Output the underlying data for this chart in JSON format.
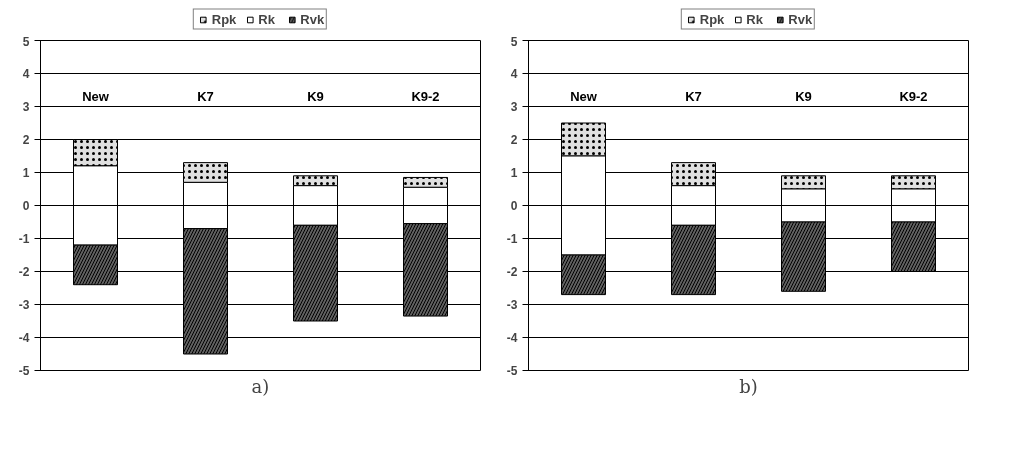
{
  "chart_data": [
    {
      "type": "bar",
      "categories": [
        "New",
        "K7",
        "K9",
        "K9-2"
      ],
      "ylim": [
        -5,
        5
      ],
      "yticks": [
        -5,
        -4,
        -3,
        -2,
        -1,
        0,
        1,
        2,
        3,
        4,
        5
      ],
      "grid": "y",
      "legend": "top",
      "annotations": [
        "a)"
      ],
      "series": [
        {
          "name": "Rpk",
          "color": "#e0e0e0",
          "base": [
            1.2,
            0.7,
            0.6,
            0.55
          ],
          "values": [
            0.8,
            0.6,
            0.3,
            0.3
          ]
        },
        {
          "name": "Rk",
          "color": "#ffffff",
          "base": [
            -1.2,
            -0.7,
            -0.6,
            -0.55
          ],
          "values": [
            2.4,
            1.4,
            1.2,
            1.1
          ]
        },
        {
          "name": "Rvk",
          "color": "#606060",
          "base": [
            -2.4,
            -4.5,
            -3.5,
            -3.35
          ],
          "values": [
            1.2,
            3.8,
            2.9,
            2.8
          ]
        }
      ]
    },
    {
      "type": "bar",
      "categories": [
        "New",
        "K7",
        "K9",
        "K9-2"
      ],
      "ylim": [
        -5,
        5
      ],
      "yticks": [
        -5,
        -4,
        -3,
        -2,
        -1,
        0,
        1,
        2,
        3,
        4,
        5
      ],
      "grid": "y",
      "legend": "top",
      "annotations": [
        "b)"
      ],
      "series": [
        {
          "name": "Rpk",
          "color": "#e0e0e0",
          "base": [
            1.5,
            0.6,
            0.5,
            0.5
          ],
          "values": [
            1.0,
            0.7,
            0.4,
            0.4
          ]
        },
        {
          "name": "Rk",
          "color": "#ffffff",
          "base": [
            -1.5,
            -0.6,
            -0.5,
            -0.5
          ],
          "values": [
            3.0,
            1.2,
            1.0,
            1.0
          ]
        },
        {
          "name": "Rvk",
          "color": "#606060",
          "base": [
            -2.7,
            -2.7,
            -2.6,
            -2.0
          ],
          "values": [
            1.2,
            2.1,
            2.1,
            1.5
          ]
        }
      ]
    }
  ]
}
